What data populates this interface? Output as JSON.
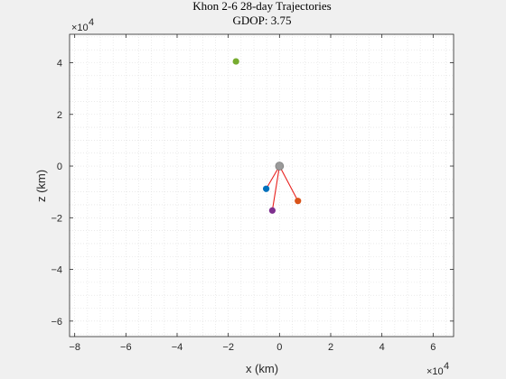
{
  "chart_data": {
    "type": "scatter",
    "title": "Khon 2-6 28-day Trajectories",
    "subtitle": "GDOP: 3.75",
    "xlabel": "x (km)",
    "ylabel": "z (km)",
    "x_exponent_base": "×10",
    "x_exponent_power": "4",
    "y_exponent_base": "×10",
    "y_exponent_power": "4",
    "xlim": [
      -8.2,
      6.8
    ],
    "ylim": [
      -6.6,
      5.1
    ],
    "scale": 10000,
    "xticks": [
      -8,
      -6,
      -4,
      -2,
      0,
      2,
      4,
      6
    ],
    "yticks": [
      -6,
      -4,
      -2,
      0,
      2,
      4
    ],
    "grid": "minor-dotted",
    "background": "#ffffff",
    "center": {
      "x": 0.0,
      "z": 0.0,
      "color": "#9a9a9a"
    },
    "points": [
      {
        "x": -1.7,
        "z": 4.05,
        "color": "#77ac30",
        "connected": false
      },
      {
        "x": -0.52,
        "z": -0.88,
        "color": "#0072bd",
        "connected": true
      },
      {
        "x": 0.72,
        "z": -1.35,
        "color": "#d95319",
        "connected": true
      },
      {
        "x": -0.28,
        "z": -1.72,
        "color": "#7e2f8e",
        "connected": true
      }
    ],
    "link_color": "#e8211e"
  }
}
